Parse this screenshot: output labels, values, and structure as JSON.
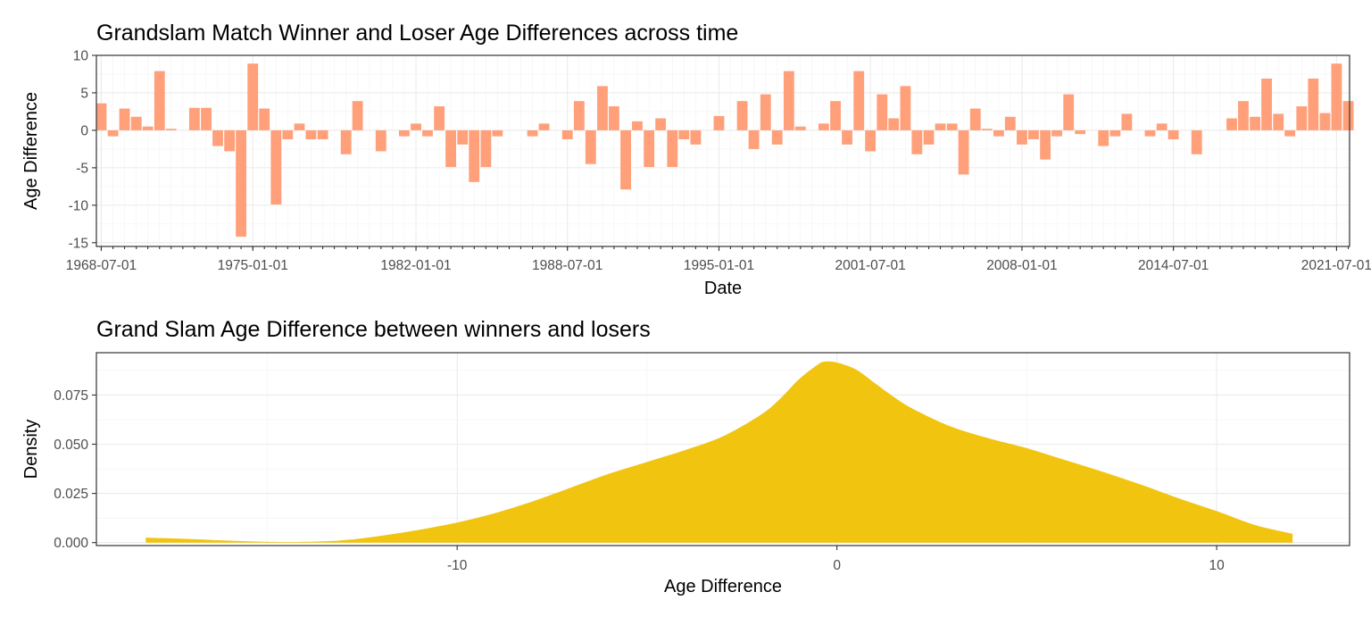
{
  "chart_data": [
    {
      "type": "bar",
      "title": "Grandslam Match Winner and Loser Age Differences across time",
      "xlabel": "Date",
      "ylabel": "Age Difference",
      "ylim": [
        -15.5,
        10
      ],
      "yticks": [
        10,
        5,
        0,
        -5,
        -10,
        -15
      ],
      "xlim": [
        "1968-04-16",
        "2022-01-21"
      ],
      "xticks": [
        "1968-07-01",
        "1975-01-01",
        "1982-01-01",
        "1988-07-01",
        "1995-01-01",
        "2001-07-01",
        "2008-01-01",
        "2014-07-01",
        "2021-07-01"
      ],
      "grid": true,
      "bar_color": "#FFA07A",
      "x": [
        "1968-07-01",
        "1969-01-01",
        "1969-07-01",
        "1970-01-01",
        "1970-07-01",
        "1971-01-01",
        "1971-07-01",
        "1972-01-01",
        "1972-07-01",
        "1973-01-01",
        "1973-07-01",
        "1974-01-01",
        "1974-07-01",
        "1975-01-01",
        "1975-07-01",
        "1976-01-01",
        "1976-07-01",
        "1977-01-01",
        "1977-07-01",
        "1978-01-01",
        "1978-07-01",
        "1979-01-01",
        "1979-07-01",
        "1980-01-01",
        "1980-07-01",
        "1981-01-01",
        "1981-07-01",
        "1982-01-01",
        "1982-07-01",
        "1983-01-01",
        "1983-07-01",
        "1984-01-01",
        "1984-07-01",
        "1985-01-01",
        "1985-07-01",
        "1986-01-01",
        "1986-07-01",
        "1987-01-01",
        "1987-07-01",
        "1988-01-01",
        "1988-07-01",
        "1989-01-01",
        "1989-07-01",
        "1990-01-01",
        "1990-07-01",
        "1991-01-01",
        "1991-07-01",
        "1992-01-01",
        "1992-07-01",
        "1993-01-01",
        "1993-07-01",
        "1994-01-01",
        "1994-07-01",
        "1995-01-01",
        "1995-07-01",
        "1996-01-01",
        "1996-07-01",
        "1997-01-01",
        "1997-07-01",
        "1998-01-01",
        "1998-07-01",
        "1999-01-01",
        "1999-07-01",
        "2000-01-01",
        "2000-07-01",
        "2001-01-01",
        "2001-07-01",
        "2002-01-01",
        "2002-07-01",
        "2003-01-01",
        "2003-07-01",
        "2004-01-01",
        "2004-07-01",
        "2005-01-01",
        "2005-07-01",
        "2006-01-01",
        "2006-07-01",
        "2007-01-01",
        "2007-07-01",
        "2008-01-01",
        "2008-07-01",
        "2009-01-01",
        "2009-07-01",
        "2010-01-01",
        "2010-07-01",
        "2011-01-01",
        "2011-07-01",
        "2012-01-01",
        "2012-07-01",
        "2013-01-01",
        "2013-07-01",
        "2014-01-01",
        "2014-07-01",
        "2015-01-01",
        "2015-07-01",
        "2016-01-01",
        "2016-07-01",
        "2017-01-01",
        "2017-07-01",
        "2018-01-01",
        "2018-07-01",
        "2019-01-01",
        "2019-07-01",
        "2020-01-01",
        "2020-07-01",
        "2021-01-01",
        "2021-07-01",
        "2022-01-01"
      ],
      "values": [
        3.6,
        -0.8,
        2.9,
        1.8,
        0.5,
        7.9,
        0.2,
        0,
        3,
        3,
        -2.1,
        -2.8,
        -14.2,
        8.9,
        2.9,
        -9.9,
        -1.2,
        0.9,
        -1.2,
        -1.2,
        0,
        -3.2,
        3.9,
        0,
        -2.8,
        0,
        -0.8,
        0.9,
        -0.8,
        3.2,
        -4.9,
        -1.9,
        -6.9,
        -4.9,
        -0.8,
        0,
        0,
        -0.8,
        0.9,
        0,
        -1.2,
        3.9,
        -4.5,
        5.9,
        3.2,
        -7.9,
        1.2,
        -4.9,
        1.6,
        -4.9,
        -1.2,
        -1.9,
        0,
        1.9,
        0,
        3.9,
        -2.5,
        4.8,
        -1.9,
        7.9,
        0.5,
        0,
        0.9,
        3.9,
        -1.9,
        7.9,
        -2.8,
        4.8,
        1.6,
        5.9,
        -3.2,
        -1.9,
        0.9,
        0.9,
        -5.9,
        2.9,
        0.2,
        -0.8,
        1.8,
        -1.9,
        -1.2,
        -3.9,
        -0.8,
        4.8,
        -0.5,
        0,
        -2.1,
        -0.8,
        2.2,
        0,
        -0.8,
        0.9,
        -1.2,
        0,
        -3.2,
        0,
        0,
        1.6,
        3.9,
        1.8,
        6.9,
        2.2,
        -0.8,
        3.2,
        6.9,
        2.3,
        8.9,
        3.9
      ]
    },
    {
      "type": "area",
      "title": "Grand Slam Age Difference between winners and losers",
      "xlabel": "Age Difference",
      "ylabel": "Density",
      "xlim": [
        -19.5,
        13.5
      ],
      "ylim": [
        -0.0015,
        0.0965
      ],
      "xticks": [
        -10,
        0,
        10
      ],
      "yticks": [
        0,
        0.025,
        0.05,
        0.075
      ],
      "ytick_labels": [
        "0.000",
        "0.025",
        "0.050",
        "0.075"
      ],
      "grid": true,
      "fill_color": "#F1C40F",
      "x": [
        -18.2,
        -17,
        -16,
        -15,
        -14.5,
        -14,
        -13,
        -12,
        -11,
        -10,
        -9,
        -8,
        -7,
        -6,
        -5,
        -4,
        -3,
        -2,
        -1.5,
        -1,
        -0.5,
        -0.3,
        0,
        0.5,
        1,
        1.5,
        2,
        3,
        4,
        5,
        6,
        7,
        8,
        9,
        10,
        11,
        12
      ],
      "y": [
        0.0025,
        0.0018,
        0.001,
        0.0004,
        0.0003,
        0.0004,
        0.0012,
        0.0035,
        0.0065,
        0.0102,
        0.015,
        0.021,
        0.028,
        0.035,
        0.041,
        0.047,
        0.054,
        0.065,
        0.073,
        0.083,
        0.0905,
        0.092,
        0.0915,
        0.088,
        0.081,
        0.074,
        0.068,
        0.059,
        0.053,
        0.048,
        0.042,
        0.036,
        0.0295,
        0.0225,
        0.016,
        0.009,
        0.0045
      ]
    }
  ]
}
